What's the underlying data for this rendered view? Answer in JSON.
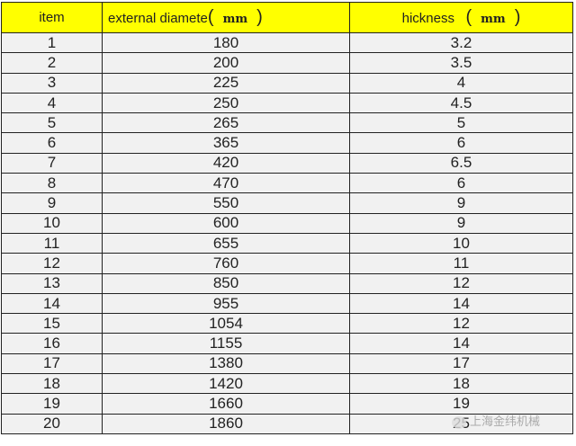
{
  "header": {
    "item": "item",
    "diameter": "external diamete",
    "thickness": "hickness",
    "unit": "mm",
    "open": "(",
    "close": ")"
  },
  "rows": [
    [
      "1",
      "180",
      "3.2"
    ],
    [
      "2",
      "200",
      "3.5"
    ],
    [
      "3",
      "225",
      "4"
    ],
    [
      "4",
      "250",
      "4.5"
    ],
    [
      "5",
      "265",
      "5"
    ],
    [
      "6",
      "365",
      "6"
    ],
    [
      "7",
      "420",
      "6.5"
    ],
    [
      "8",
      "470",
      "6"
    ],
    [
      "9",
      "550",
      "9"
    ],
    [
      "10",
      "600",
      "9"
    ],
    [
      "11",
      "655",
      "10"
    ],
    [
      "12",
      "760",
      "11"
    ],
    [
      "13",
      "850",
      "12"
    ],
    [
      "14",
      "955",
      "14"
    ],
    [
      "15",
      "1054",
      "12"
    ],
    [
      "16",
      "1155",
      "14"
    ],
    [
      "17",
      "1380",
      "17"
    ],
    [
      "18",
      "1420",
      "18"
    ],
    [
      "19",
      "1660",
      "19"
    ],
    [
      "20",
      "1860",
      "25"
    ]
  ],
  "watermark": "上海金纬机械",
  "colors": {
    "header_bg": "#ffff00",
    "row_bg": "#f1f1f1"
  }
}
